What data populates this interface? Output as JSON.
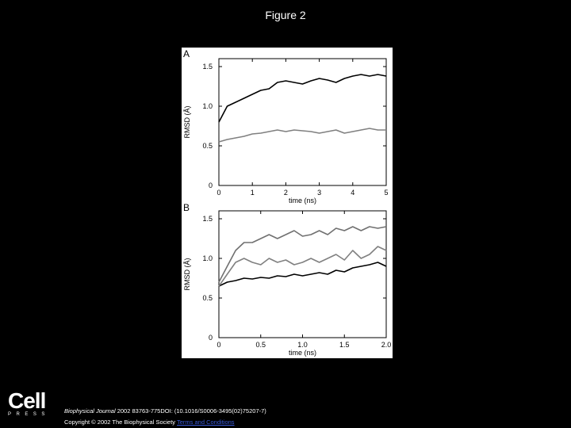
{
  "slide": {
    "title": "Figure 2"
  },
  "citation": {
    "journal": "Biophysical Journal",
    "details": "2002 83763-775DOI: (10.1016/S0006-3495(02)75207-7)"
  },
  "copyright": {
    "text": "Copyright © 2002 The Biophysical Society",
    "link_text": "Terms and Conditions"
  },
  "logo": {
    "name": "Cell",
    "sub": "PRESS"
  },
  "chart_data": [
    {
      "type": "line",
      "panel_label": "A",
      "xlabel": "time (ns)",
      "ylabel": "RMSD (Å)",
      "xlim": [
        0,
        5
      ],
      "ylim": [
        0,
        1.6
      ],
      "xticks": [
        0,
        1,
        2,
        3,
        4,
        5
      ],
      "yticks": [
        0,
        0.5,
        1.0,
        1.5
      ],
      "ytick_labels": [
        "0",
        "0.5",
        "1.0",
        "1.5"
      ],
      "series": [
        {
          "color": "#000000",
          "x": [
            0,
            0.25,
            0.5,
            0.75,
            1.0,
            1.25,
            1.5,
            1.75,
            2.0,
            2.25,
            2.5,
            2.75,
            3.0,
            3.25,
            3.5,
            3.75,
            4.0,
            4.25,
            4.5,
            4.75,
            5.0
          ],
          "y": [
            0.8,
            1.0,
            1.05,
            1.1,
            1.15,
            1.2,
            1.22,
            1.3,
            1.32,
            1.3,
            1.28,
            1.32,
            1.35,
            1.33,
            1.3,
            1.35,
            1.38,
            1.4,
            1.38,
            1.4,
            1.38
          ]
        },
        {
          "color": "#808080",
          "x": [
            0,
            0.25,
            0.5,
            0.75,
            1.0,
            1.25,
            1.5,
            1.75,
            2.0,
            2.25,
            2.5,
            2.75,
            3.0,
            3.25,
            3.5,
            3.75,
            4.0,
            4.25,
            4.5,
            4.75,
            5.0
          ],
          "y": [
            0.55,
            0.58,
            0.6,
            0.62,
            0.65,
            0.66,
            0.68,
            0.7,
            0.68,
            0.7,
            0.69,
            0.68,
            0.66,
            0.68,
            0.7,
            0.66,
            0.68,
            0.7,
            0.72,
            0.7,
            0.7
          ]
        }
      ]
    },
    {
      "type": "line",
      "panel_label": "B",
      "xlabel": "time (ns)",
      "ylabel": "RMSD (Å)",
      "xlim": [
        0,
        2.0
      ],
      "ylim": [
        0,
        1.6
      ],
      "xticks": [
        0,
        0.5,
        1.0,
        1.5,
        2.0
      ],
      "xtick_labels": [
        "0",
        "0.5",
        "1.0",
        "1.5",
        "2.0"
      ],
      "yticks": [
        0,
        0.5,
        1.0,
        1.5
      ],
      "ytick_labels": [
        "0",
        "0.5",
        "1.0",
        "1.5"
      ],
      "series": [
        {
          "color": "#000000",
          "x": [
            0,
            0.1,
            0.2,
            0.3,
            0.4,
            0.5,
            0.6,
            0.7,
            0.8,
            0.9,
            1.0,
            1.1,
            1.2,
            1.3,
            1.4,
            1.5,
            1.6,
            1.7,
            1.8,
            1.9,
            2.0
          ],
          "y": [
            0.65,
            0.7,
            0.72,
            0.75,
            0.74,
            0.76,
            0.75,
            0.78,
            0.77,
            0.8,
            0.78,
            0.8,
            0.82,
            0.8,
            0.85,
            0.83,
            0.88,
            0.9,
            0.92,
            0.95,
            0.9
          ]
        },
        {
          "color": "#808080",
          "x": [
            0,
            0.1,
            0.2,
            0.3,
            0.4,
            0.5,
            0.6,
            0.7,
            0.8,
            0.9,
            1.0,
            1.1,
            1.2,
            1.3,
            1.4,
            1.5,
            1.6,
            1.7,
            1.8,
            1.9,
            2.0
          ],
          "y": [
            0.65,
            0.8,
            0.95,
            1.0,
            0.95,
            0.92,
            1.0,
            0.95,
            0.98,
            0.92,
            0.95,
            1.0,
            0.95,
            1.0,
            1.05,
            0.98,
            1.1,
            1.0,
            1.05,
            1.15,
            1.1
          ]
        },
        {
          "color": "#707070",
          "x": [
            0,
            0.1,
            0.2,
            0.3,
            0.4,
            0.5,
            0.6,
            0.7,
            0.8,
            0.9,
            1.0,
            1.1,
            1.2,
            1.3,
            1.4,
            1.5,
            1.6,
            1.7,
            1.8,
            1.9,
            2.0
          ],
          "y": [
            0.7,
            0.9,
            1.1,
            1.2,
            1.2,
            1.25,
            1.3,
            1.25,
            1.3,
            1.35,
            1.28,
            1.3,
            1.35,
            1.3,
            1.38,
            1.35,
            1.4,
            1.35,
            1.4,
            1.38,
            1.4
          ]
        }
      ]
    }
  ]
}
